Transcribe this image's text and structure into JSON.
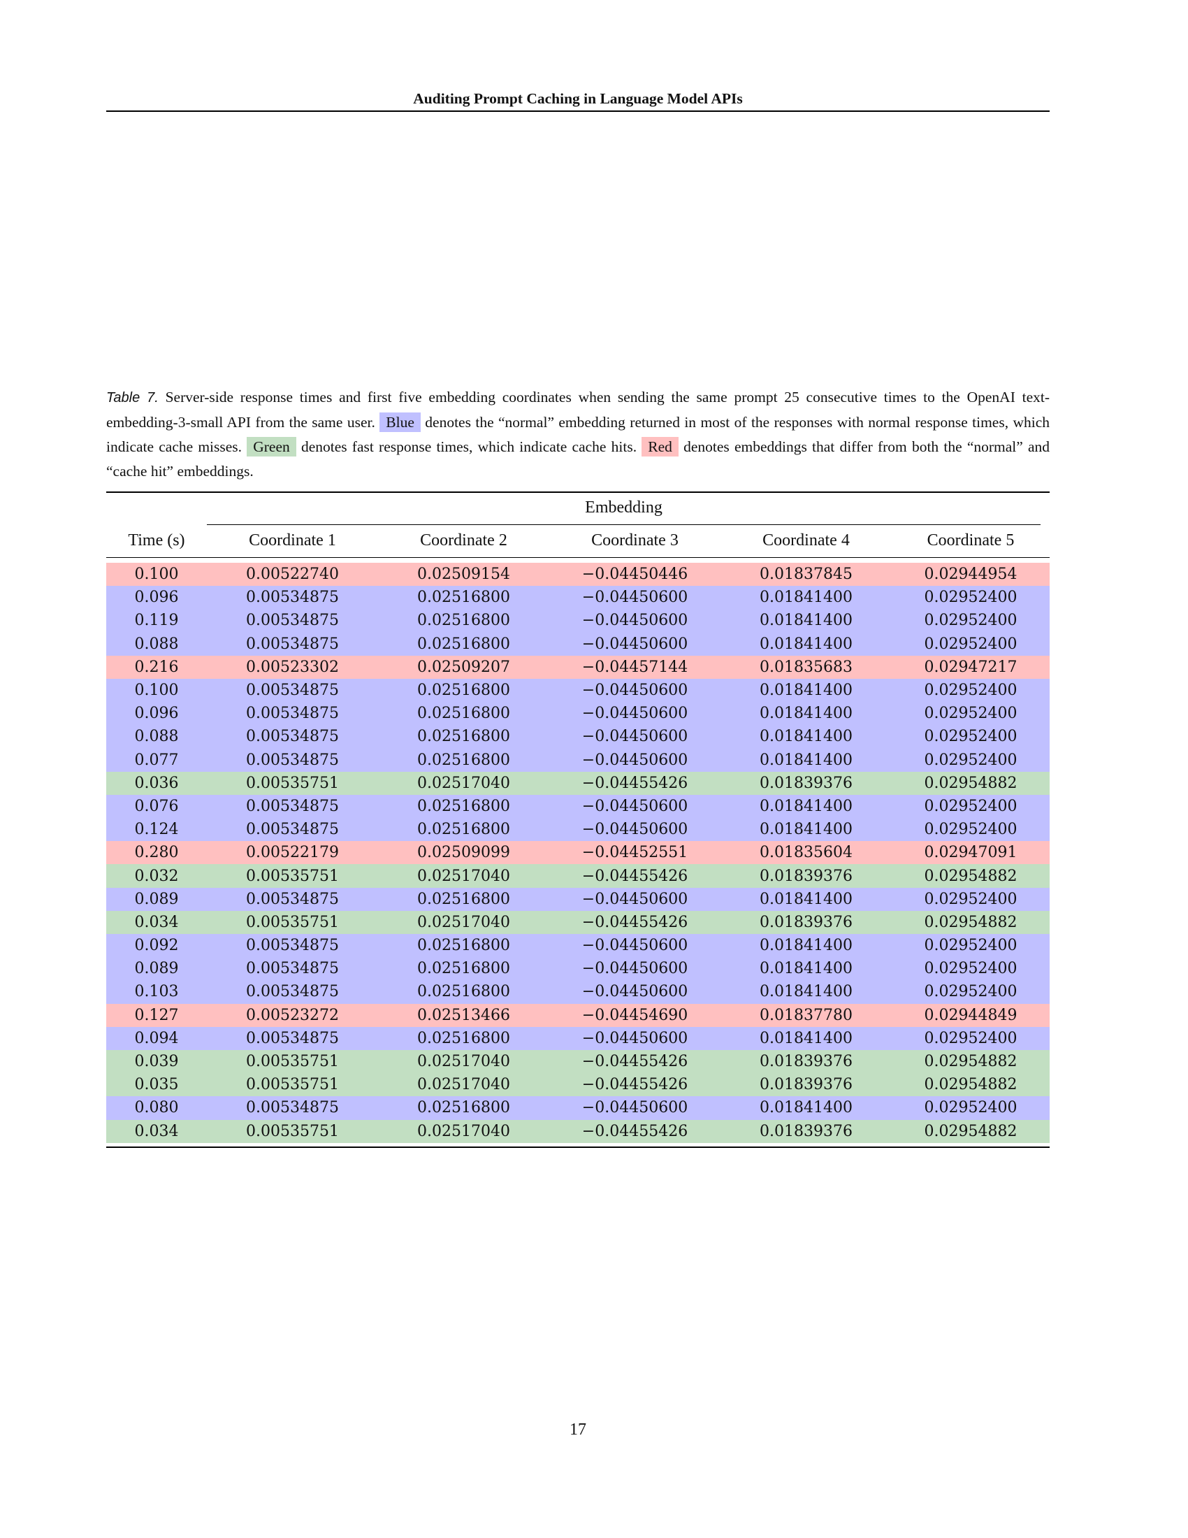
{
  "header": {
    "title": "Auditing Prompt Caching in Language Model APIs"
  },
  "caption": {
    "label": "Table 7.",
    "part1": "Server-side response times and first five embedding coordinates when sending the same prompt 25 consecutive times to the OpenAI text-embedding-3-small API from the same user.",
    "blue_word": "Blue",
    "part2": "denotes the “normal” embedding returned in most of the responses with normal response times, which indicate cache misses.",
    "green_word": "Green",
    "part3": "denotes fast response times, which indicate cache hits.",
    "red_word": "Red",
    "part4": "denotes embeddings that differ from both the “normal” and “cache hit” embeddings."
  },
  "colors": {
    "blue": "#c0c0ff",
    "green": "#c2dfc2",
    "red": "#ffc0c0"
  },
  "table": {
    "group_header": "Embedding",
    "columns": [
      "Time (s)",
      "Coordinate 1",
      "Coordinate 2",
      "Coordinate 3",
      "Coordinate 4",
      "Coordinate 5"
    ],
    "rows": [
      {
        "color": "red",
        "cells": [
          "0.100",
          "0.00522740",
          "0.02509154",
          "−0.04450446",
          "0.01837845",
          "0.02944954"
        ]
      },
      {
        "color": "blue",
        "cells": [
          "0.096",
          "0.00534875",
          "0.02516800",
          "−0.04450600",
          "0.01841400",
          "0.02952400"
        ]
      },
      {
        "color": "blue",
        "cells": [
          "0.119",
          "0.00534875",
          "0.02516800",
          "−0.04450600",
          "0.01841400",
          "0.02952400"
        ]
      },
      {
        "color": "blue",
        "cells": [
          "0.088",
          "0.00534875",
          "0.02516800",
          "−0.04450600",
          "0.01841400",
          "0.02952400"
        ]
      },
      {
        "color": "red",
        "cells": [
          "0.216",
          "0.00523302",
          "0.02509207",
          "−0.04457144",
          "0.01835683",
          "0.02947217"
        ]
      },
      {
        "color": "blue",
        "cells": [
          "0.100",
          "0.00534875",
          "0.02516800",
          "−0.04450600",
          "0.01841400",
          "0.02952400"
        ]
      },
      {
        "color": "blue",
        "cells": [
          "0.096",
          "0.00534875",
          "0.02516800",
          "−0.04450600",
          "0.01841400",
          "0.02952400"
        ]
      },
      {
        "color": "blue",
        "cells": [
          "0.088",
          "0.00534875",
          "0.02516800",
          "−0.04450600",
          "0.01841400",
          "0.02952400"
        ]
      },
      {
        "color": "blue",
        "cells": [
          "0.077",
          "0.00534875",
          "0.02516800",
          "−0.04450600",
          "0.01841400",
          "0.02952400"
        ]
      },
      {
        "color": "green",
        "cells": [
          "0.036",
          "0.00535751",
          "0.02517040",
          "−0.04455426",
          "0.01839376",
          "0.02954882"
        ]
      },
      {
        "color": "blue",
        "cells": [
          "0.076",
          "0.00534875",
          "0.02516800",
          "−0.04450600",
          "0.01841400",
          "0.02952400"
        ]
      },
      {
        "color": "blue",
        "cells": [
          "0.124",
          "0.00534875",
          "0.02516800",
          "−0.04450600",
          "0.01841400",
          "0.02952400"
        ]
      },
      {
        "color": "red",
        "cells": [
          "0.280",
          "0.00522179",
          "0.02509099",
          "−0.04452551",
          "0.01835604",
          "0.02947091"
        ]
      },
      {
        "color": "green",
        "cells": [
          "0.032",
          "0.00535751",
          "0.02517040",
          "−0.04455426",
          "0.01839376",
          "0.02954882"
        ]
      },
      {
        "color": "blue",
        "cells": [
          "0.089",
          "0.00534875",
          "0.02516800",
          "−0.04450600",
          "0.01841400",
          "0.02952400"
        ]
      },
      {
        "color": "green",
        "cells": [
          "0.034",
          "0.00535751",
          "0.02517040",
          "−0.04455426",
          "0.01839376",
          "0.02954882"
        ]
      },
      {
        "color": "blue",
        "cells": [
          "0.092",
          "0.00534875",
          "0.02516800",
          "−0.04450600",
          "0.01841400",
          "0.02952400"
        ]
      },
      {
        "color": "blue",
        "cells": [
          "0.089",
          "0.00534875",
          "0.02516800",
          "−0.04450600",
          "0.01841400",
          "0.02952400"
        ]
      },
      {
        "color": "blue",
        "cells": [
          "0.103",
          "0.00534875",
          "0.02516800",
          "−0.04450600",
          "0.01841400",
          "0.02952400"
        ]
      },
      {
        "color": "red",
        "cells": [
          "0.127",
          "0.00523272",
          "0.02513466",
          "−0.04454690",
          "0.01837780",
          "0.02944849"
        ]
      },
      {
        "color": "blue",
        "cells": [
          "0.094",
          "0.00534875",
          "0.02516800",
          "−0.04450600",
          "0.01841400",
          "0.02952400"
        ]
      },
      {
        "color": "green",
        "cells": [
          "0.039",
          "0.00535751",
          "0.02517040",
          "−0.04455426",
          "0.01839376",
          "0.02954882"
        ]
      },
      {
        "color": "green",
        "cells": [
          "0.035",
          "0.00535751",
          "0.02517040",
          "−0.04455426",
          "0.01839376",
          "0.02954882"
        ]
      },
      {
        "color": "blue",
        "cells": [
          "0.080",
          "0.00534875",
          "0.02516800",
          "−0.04450600",
          "0.01841400",
          "0.02952400"
        ]
      },
      {
        "color": "green",
        "cells": [
          "0.034",
          "0.00535751",
          "0.02517040",
          "−0.04455426",
          "0.01839376",
          "0.02954882"
        ]
      }
    ]
  },
  "footer": {
    "page_number": "17"
  }
}
